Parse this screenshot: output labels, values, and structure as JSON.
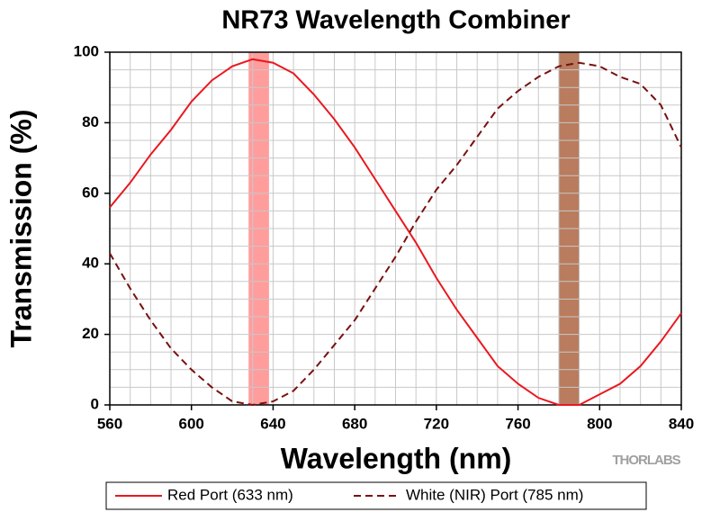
{
  "chart_data": {
    "type": "line",
    "title": "NR73 Wavelength Combiner",
    "x_label": "Wavelength (nm)",
    "y_label": "Transmission (%)",
    "brand": "THORLABS",
    "x": [
      560,
      570,
      580,
      590,
      600,
      610,
      620,
      630,
      640,
      650,
      660,
      670,
      680,
      690,
      700,
      710,
      720,
      730,
      740,
      750,
      760,
      770,
      780,
      790,
      800,
      810,
      820,
      830,
      840
    ],
    "series": [
      {
        "name": "Red Port (633 nm)",
        "color": "#e8191f",
        "dash": false,
        "values": [
          56,
          63,
          71,
          78,
          86,
          92,
          96,
          98,
          97,
          94,
          88,
          81,
          73,
          64,
          55,
          46,
          36,
          27,
          19,
          11,
          6,
          2,
          0,
          0,
          3,
          6,
          11,
          18,
          26
        ]
      },
      {
        "name": "White (NIR) Port (785 nm)",
        "color": "#7a1010",
        "dash": true,
        "values": [
          43,
          33,
          24,
          16,
          10,
          5,
          1,
          0,
          1,
          4,
          10,
          17,
          24,
          33,
          42,
          52,
          61,
          68,
          76,
          84,
          89,
          93,
          96,
          97,
          96,
          93,
          91,
          85,
          73
        ]
      }
    ],
    "bands": [
      {
        "range": [
          628,
          638
        ],
        "color": "#ff9d9d"
      },
      {
        "range": [
          780,
          790
        ],
        "color": "#b97c5f"
      }
    ],
    "xlim": [
      560,
      840
    ],
    "xticks": [
      560,
      600,
      640,
      680,
      720,
      760,
      800,
      840
    ],
    "xminorticks": [
      570,
      580,
      590,
      610,
      620,
      630,
      650,
      660,
      670,
      690,
      700,
      710,
      730,
      740,
      750,
      770,
      780,
      790,
      810,
      820,
      830
    ],
    "ylim": [
      0,
      100
    ],
    "yticks": [
      0,
      20,
      40,
      60,
      80,
      100
    ],
    "yminorticks": [
      5,
      10,
      15,
      25,
      30,
      35,
      45,
      50,
      55,
      65,
      70,
      75,
      85,
      90,
      95
    ],
    "grid": true,
    "legend": "bottom"
  }
}
